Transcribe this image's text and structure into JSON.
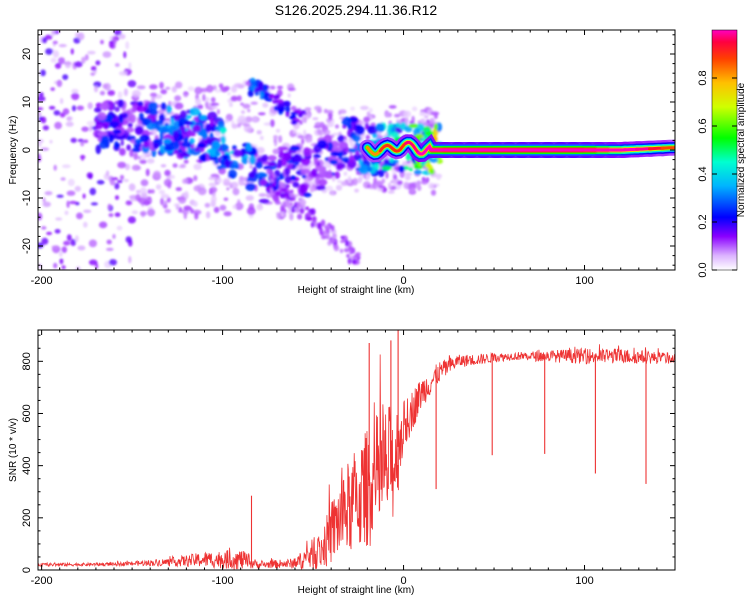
{
  "title": "S126.2025.294.11.36.R12",
  "chart_data": [
    {
      "type": "heatmap",
      "xlabel": "Height of straight line (km)",
      "ylabel": "Frequency (Hz)",
      "xlim": [
        -202,
        150
      ],
      "ylim": [
        -25,
        25
      ],
      "x_ticks": [
        -200,
        -100,
        0,
        100
      ],
      "x_tick_labels": [
        "-200",
        "-100",
        "0",
        "100"
      ],
      "y_ticks": [
        -20,
        -10,
        0,
        10,
        20
      ],
      "y_tick_labels": [
        "-20",
        "-10",
        "0",
        "10",
        "20"
      ],
      "colorbar": {
        "label": "Normalized spectral amplitude",
        "range": [
          0,
          1
        ],
        "ticks": [
          0.0,
          0.2,
          0.4,
          0.6,
          0.8
        ],
        "tick_labels": [
          "0.0",
          "0.2",
          "0.4",
          "0.6",
          "0.8"
        ],
        "colors": [
          "#ffffff",
          "#cc66ff",
          "#7a00ff",
          "#0000ff",
          "#00ffff",
          "#00ff00",
          "#ffff00",
          "#ff7f00",
          "#ff0000"
        ]
      },
      "ridge": [
        {
          "x": -150,
          "f": 5,
          "amp": 0.3
        },
        {
          "x": -130,
          "f": 4,
          "amp": 0.4
        },
        {
          "x": -110,
          "f": 3,
          "amp": 0.4
        },
        {
          "x": -100,
          "f": 1,
          "amp": 0.5
        },
        {
          "x": -90,
          "f": -2,
          "amp": 0.45
        },
        {
          "x": -80,
          "f": -6,
          "amp": 0.35
        },
        {
          "x": -60,
          "f": -4,
          "amp": 0.3
        },
        {
          "x": -50,
          "f": -5,
          "amp": 0.25
        },
        {
          "x": -30,
          "f": 2,
          "amp": 0.3
        },
        {
          "x": -20,
          "f": 0,
          "amp": 0.45
        },
        {
          "x": -10,
          "f": 0,
          "amp": 0.6
        },
        {
          "x": 0,
          "f": 1,
          "amp": 0.6
        },
        {
          "x": 10,
          "f": 0,
          "amp": 0.75
        },
        {
          "x": 20,
          "f": 0,
          "amp": 0.95
        },
        {
          "x": 60,
          "f": 0,
          "amp": 1.0
        },
        {
          "x": 100,
          "f": 0,
          "amp": 1.0
        },
        {
          "x": 120,
          "f": 0,
          "amp": 0.8
        },
        {
          "x": 150,
          "f": 0.5,
          "amp": 0.55
        }
      ],
      "secondary_branch": [
        {
          "x": -80,
          "f": 13,
          "amp": 0.3
        },
        {
          "x": -70,
          "f": 10,
          "amp": 0.25
        },
        {
          "x": -60,
          "f": 7,
          "amp": 0.2
        }
      ]
    },
    {
      "type": "line",
      "xlabel": "Height of straight line (km)",
      "ylabel": "SNR (10 * v/v)",
      "xlim": [
        -202,
        150
      ],
      "ylim": [
        0,
        920
      ],
      "x_ticks": [
        -200,
        -100,
        0,
        100
      ],
      "x_tick_labels": [
        "-200",
        "-100",
        "0",
        "100"
      ],
      "y_ticks": [
        0,
        200,
        400,
        600,
        800
      ],
      "y_tick_labels": [
        "0",
        "200",
        "400",
        "600",
        "800"
      ],
      "color": "#ee3333",
      "envelope": [
        {
          "x": -202,
          "base": 20,
          "spread": 12
        },
        {
          "x": -160,
          "base": 22,
          "spread": 12
        },
        {
          "x": -130,
          "base": 30,
          "spread": 30
        },
        {
          "x": -110,
          "base": 40,
          "spread": 60
        },
        {
          "x": -90,
          "base": 40,
          "spread": 80
        },
        {
          "x": -80,
          "base": 20,
          "spread": 25
        },
        {
          "x": -60,
          "base": 25,
          "spread": 40
        },
        {
          "x": -45,
          "base": 80,
          "spread": 160
        },
        {
          "x": -35,
          "base": 200,
          "spread": 320
        },
        {
          "x": -25,
          "base": 280,
          "spread": 420
        },
        {
          "x": -15,
          "base": 350,
          "spread": 500
        },
        {
          "x": -5,
          "base": 420,
          "spread": 460
        },
        {
          "x": 0,
          "base": 550,
          "spread": 200
        },
        {
          "x": 10,
          "base": 680,
          "spread": 120
        },
        {
          "x": 20,
          "base": 760,
          "spread": 80
        },
        {
          "x": 30,
          "base": 800,
          "spread": 50
        },
        {
          "x": 60,
          "base": 820,
          "spread": 30
        },
        {
          "x": 100,
          "base": 820,
          "spread": 60
        },
        {
          "x": 120,
          "base": 820,
          "spread": 60
        },
        {
          "x": 150,
          "base": 810,
          "spread": 40
        }
      ],
      "spikes": [
        {
          "x": -84,
          "y": 285
        },
        {
          "x": -19,
          "y": 870
        },
        {
          "x": -7,
          "y": 880
        },
        {
          "x": -3,
          "y": 920
        },
        {
          "x": 18,
          "y": 310
        },
        {
          "x": 49,
          "y": 440
        },
        {
          "x": 78,
          "y": 445
        },
        {
          "x": 106,
          "y": 370
        },
        {
          "x": 134,
          "y": 330
        }
      ]
    }
  ]
}
